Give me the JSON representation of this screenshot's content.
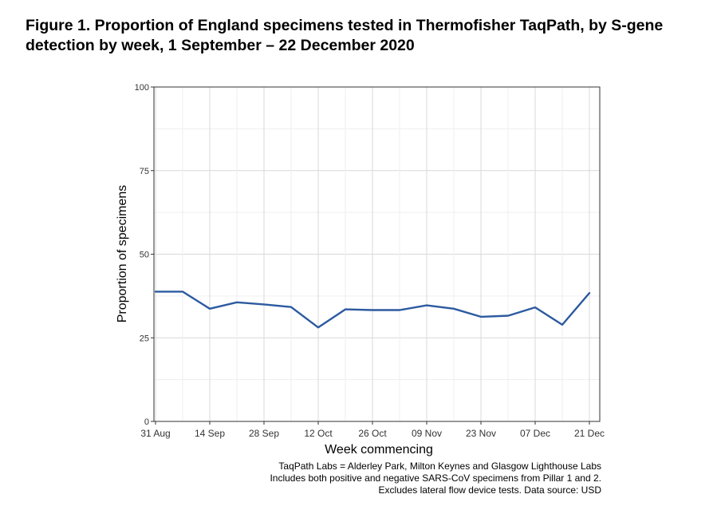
{
  "figure": {
    "title": "Figure 1. Proportion of England specimens tested in Thermofisher TaqPath, by S-gene detection by week, 1 September – 22 December 2020"
  },
  "chart_data": {
    "type": "line",
    "xlabel": "Week commencing",
    "ylabel": "Proportion of specimens",
    "ylim": [
      0,
      100
    ],
    "yticks": [
      0,
      25,
      50,
      75,
      100
    ],
    "xticks": [
      {
        "week": 0,
        "label": "31 Aug"
      },
      {
        "week": 2,
        "label": "14 Sep"
      },
      {
        "week": 4,
        "label": "28 Sep"
      },
      {
        "week": 6,
        "label": "12 Oct"
      },
      {
        "week": 8,
        "label": "26 Oct"
      },
      {
        "week": 10,
        "label": "09 Nov"
      },
      {
        "week": 12,
        "label": "23 Nov"
      },
      {
        "week": 14,
        "label": "07 Dec"
      },
      {
        "week": 16,
        "label": "21 Dec"
      }
    ],
    "xlim": [
      0,
      16
    ],
    "grid": true,
    "series": [
      {
        "name": "Proportion",
        "color": "#2c5aa0",
        "x": [
          0,
          1,
          2,
          3,
          4,
          5,
          6,
          7,
          8,
          9,
          10,
          11,
          12,
          13,
          14,
          15,
          16
        ],
        "values": [
          38.8,
          38.8,
          33.7,
          35.6,
          35.0,
          34.2,
          28.1,
          33.5,
          33.3,
          33.3,
          34.7,
          33.7,
          31.3,
          31.6,
          34.1,
          28.9,
          38.4
        ]
      }
    ]
  },
  "caption": {
    "line1": "TaqPath Labs = Alderley Park, Milton Keynes and Glasgow Lighthouse Labs",
    "line2": "Includes both positive and negative SARS-CoV specimens from Pillar 1 and 2.",
    "line3": "Excludes lateral flow device tests. Data source: USD"
  }
}
